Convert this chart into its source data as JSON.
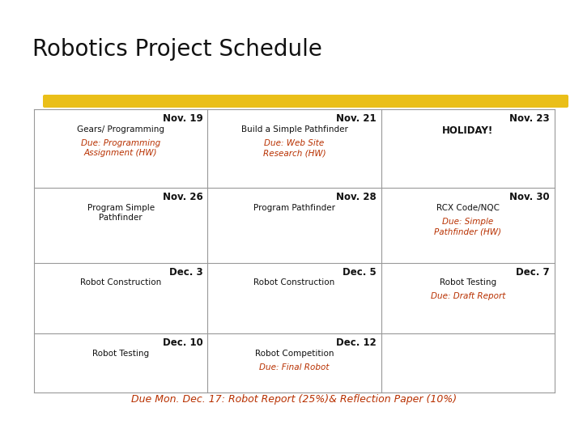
{
  "title": "Robotics Project Schedule",
  "title_size": 20,
  "background_color": "#ffffff",
  "highlight_color": "#E8B800",
  "table_border_color": "#999999",
  "black_text": "#111111",
  "orange_text": "#b83000",
  "rows": [
    [
      {
        "date": "Nov. 19",
        "lines": [
          [
            "Gears/ Programming",
            "normal"
          ],
          [
            "Due: Programming\nAssignment (HW)",
            "orange_italic"
          ]
        ]
      },
      {
        "date": "Nov. 21",
        "lines": [
          [
            "Build a Simple Pathfinder",
            "normal"
          ],
          [
            "Due: Web Site\nResearch (HW)",
            "orange_italic"
          ]
        ]
      },
      {
        "date": "Nov. 23",
        "lines": [
          [
            "HOLIDAY!",
            "bold_dark"
          ]
        ]
      }
    ],
    [
      {
        "date": "Nov. 26",
        "lines": [
          [
            "Program Simple\nPathfinder",
            "normal"
          ]
        ]
      },
      {
        "date": "Nov. 28",
        "lines": [
          [
            "Program Pathfinder",
            "normal"
          ]
        ]
      },
      {
        "date": "Nov. 30",
        "lines": [
          [
            "RCX Code/NQC",
            "normal"
          ],
          [
            "Due: Simple\nPathfinder (HW)",
            "orange_italic"
          ]
        ]
      }
    ],
    [
      {
        "date": "Dec. 3",
        "lines": [
          [
            "Robot Construction",
            "normal"
          ]
        ]
      },
      {
        "date": "Dec. 5",
        "lines": [
          [
            "Robot Construction",
            "normal"
          ]
        ]
      },
      {
        "date": "Dec. 7",
        "lines": [
          [
            "Robot Testing",
            "normal"
          ],
          [
            "Due: Draft Report",
            "orange_italic"
          ]
        ]
      }
    ],
    [
      {
        "date": "Dec. 10",
        "lines": [
          [
            "Robot Testing",
            "normal"
          ]
        ]
      },
      {
        "date": "Dec. 12",
        "lines": [
          [
            "Robot Competition",
            "normal"
          ],
          [
            "Due: Final Robot",
            "orange_italic"
          ]
        ]
      },
      {
        "date": "",
        "lines": []
      }
    ]
  ],
  "footer": "Due Mon. Dec. 17: Robot Report (25%)& Reflection Paper (10%)"
}
